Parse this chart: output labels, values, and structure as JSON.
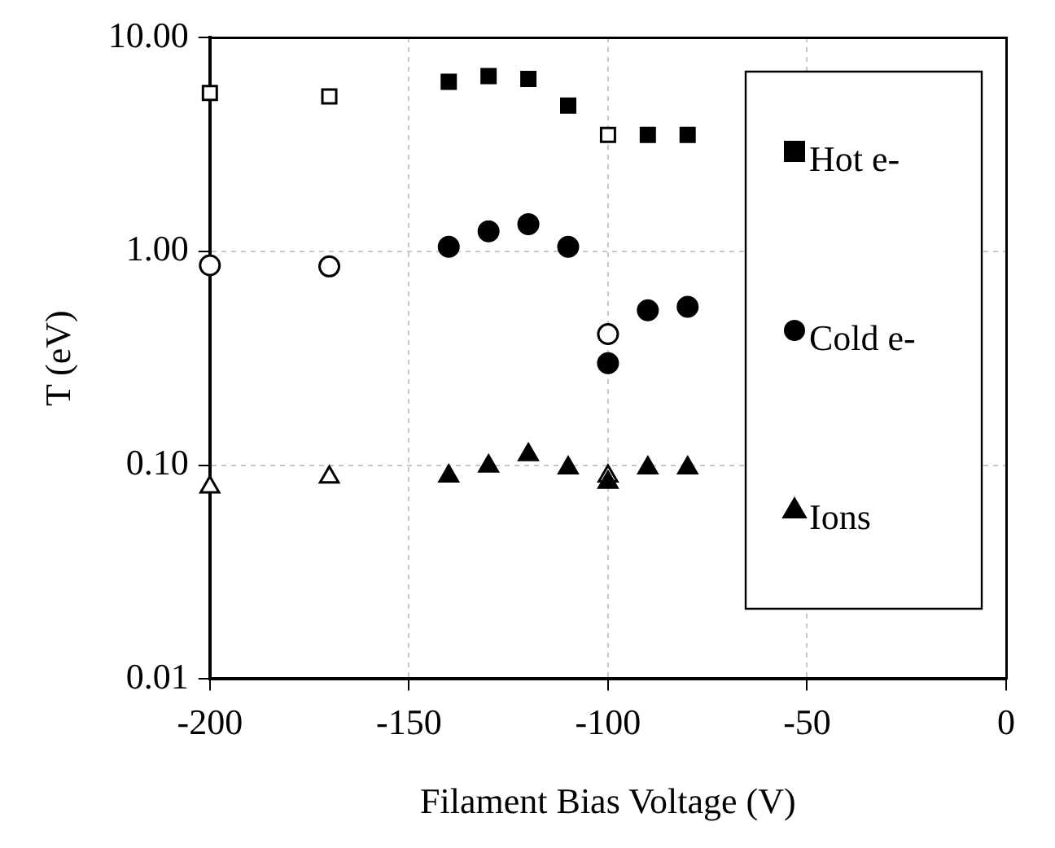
{
  "chart_data": {
    "type": "scatter",
    "xlabel": "Filament Bias Voltage (V)",
    "ylabel": "T (eV)",
    "xlim": [
      -200,
      0
    ],
    "xticks": [
      -200,
      -150,
      -100,
      -50,
      0
    ],
    "ylim": [
      0.01,
      10
    ],
    "yticks": [
      {
        "value": 0.01,
        "label": "0.01"
      },
      {
        "value": 0.1,
        "label": "0.10"
      },
      {
        "value": 1,
        "label": "1.00"
      },
      {
        "value": 10,
        "label": "10.00"
      }
    ],
    "log": "y",
    "grid": true,
    "legend": "right",
    "series": [
      {
        "name": "Hot e-",
        "color": "#000000",
        "marker": "square",
        "x": [
          -140,
          -130,
          -120,
          -110,
          -90,
          -80
        ],
        "values": [
          6.2,
          6.6,
          6.4,
          4.8,
          3.5,
          3.5
        ]
      },
      {
        "name": "Cold e-",
        "color": "#000000",
        "marker": "circle",
        "x": [
          -140,
          -130,
          -120,
          -110,
          -100,
          -90,
          -80
        ],
        "values": [
          1.05,
          1.24,
          1.34,
          1.05,
          0.3,
          0.53,
          0.55
        ]
      },
      {
        "name": "Ions",
        "color": "#000000",
        "marker": "triangle",
        "x": [
          -140,
          -130,
          -120,
          -110,
          -100,
          -90,
          -80
        ],
        "values": [
          0.089,
          0.099,
          0.112,
          0.097,
          0.083,
          0.097,
          0.097
        ]
      },
      {
        "color": "#ffffff",
        "marker": "square",
        "x": [
          -200,
          -170,
          -100
        ],
        "values": [
          5.5,
          5.3,
          3.5
        ]
      },
      {
        "color": "#ffffff",
        "marker": "circle",
        "x": [
          -200,
          -170,
          -100
        ],
        "values": [
          0.86,
          0.85,
          0.41
        ]
      },
      {
        "color": "#ffffff",
        "marker": "triangle",
        "x": [
          -200,
          -170,
          -100
        ],
        "values": [
          0.079,
          0.088,
          0.089
        ]
      }
    ]
  }
}
